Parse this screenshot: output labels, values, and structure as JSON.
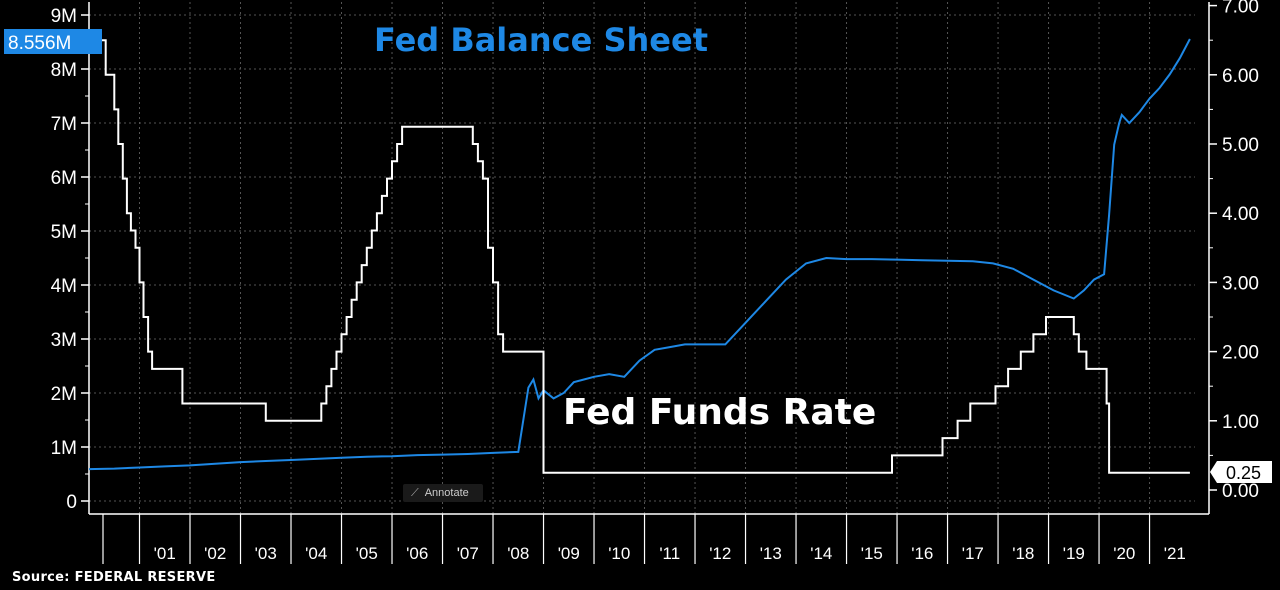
{
  "chart_data": {
    "type": "line",
    "title": "Fed Balance Sheet",
    "title_color": "#1e88e5",
    "source": "Source: FEDERAL RESERVE",
    "annotate_label": "Annotate",
    "x_range": [
      2000.0,
      2021.9
    ],
    "x_tick_labels": [
      "'01",
      "'02",
      "'03",
      "'04",
      "'05",
      "'06",
      "'07",
      "'08",
      "'09",
      "'10",
      "'11",
      "'12",
      "'13",
      "'14",
      "'15",
      "'16",
      "'17",
      "'18",
      "'19",
      "'20",
      "'21"
    ],
    "y_left": {
      "ticks": [
        0,
        1,
        2,
        3,
        4,
        5,
        6,
        7,
        8,
        9
      ],
      "tick_labels": [
        "0",
        "1M",
        "2M",
        "3M",
        "4M",
        "5M",
        "6M",
        "7M",
        "8M",
        "9M"
      ],
      "range": [
        0,
        9.3
      ],
      "last_value_label": "8.556M",
      "last_value_color": "#1e88e5"
    },
    "y_right": {
      "ticks": [
        0,
        1,
        2,
        3,
        4,
        5,
        6,
        7
      ],
      "tick_labels": [
        "0.00",
        "1.00",
        "2.00",
        "3.00",
        "4.00",
        "5.00",
        "6.00",
        "7.00"
      ],
      "range": [
        -0.15,
        7.0
      ],
      "last_value_label": "0.25"
    },
    "grid": true,
    "series": [
      {
        "name": "Fed Balance Sheet",
        "axis": "left",
        "color": "#1e88e5",
        "x": [
          2000.0,
          2000.5,
          2001.0,
          2001.5,
          2002.0,
          2002.5,
          2003.0,
          2003.5,
          2004.0,
          2004.5,
          2005.0,
          2005.5,
          2006.0,
          2006.5,
          2007.0,
          2007.5,
          2008.0,
          2008.5,
          2008.7,
          2008.8,
          2008.9,
          2009.0,
          2009.2,
          2009.4,
          2009.6,
          2009.8,
          2010.0,
          2010.3,
          2010.6,
          2010.9,
          2011.2,
          2011.5,
          2011.8,
          2012.2,
          2012.6,
          2013.0,
          2013.4,
          2013.8,
          2014.2,
          2014.6,
          2015.0,
          2015.5,
          2016.0,
          2016.5,
          2017.0,
          2017.5,
          2017.9,
          2018.3,
          2018.7,
          2019.1,
          2019.5,
          2019.7,
          2019.9,
          2020.1,
          2020.2,
          2020.3,
          2020.4,
          2020.45,
          2020.6,
          2020.8,
          2021.0,
          2021.2,
          2021.4,
          2021.6,
          2021.8
        ],
        "values": [
          0.59,
          0.6,
          0.62,
          0.64,
          0.66,
          0.69,
          0.72,
          0.74,
          0.76,
          0.78,
          0.8,
          0.82,
          0.83,
          0.85,
          0.86,
          0.87,
          0.89,
          0.91,
          2.1,
          2.25,
          1.9,
          2.05,
          1.9,
          2.0,
          2.2,
          2.25,
          2.3,
          2.35,
          2.3,
          2.6,
          2.8,
          2.85,
          2.9,
          2.9,
          2.9,
          3.3,
          3.7,
          4.1,
          4.4,
          4.5,
          4.48,
          4.48,
          4.47,
          4.46,
          4.45,
          4.44,
          4.4,
          4.3,
          4.1,
          3.9,
          3.75,
          3.9,
          4.1,
          4.2,
          5.3,
          6.6,
          7.0,
          7.15,
          7.0,
          7.2,
          7.45,
          7.65,
          7.9,
          8.2,
          8.556
        ]
      },
      {
        "name": "Fed Funds Rate",
        "axis": "right",
        "color": "#ffffff",
        "step": true,
        "x": [
          2000.0,
          2000.25,
          2000.33,
          2000.5,
          2000.58,
          2000.67,
          2000.75,
          2000.83,
          2000.92,
          2001.0,
          2001.08,
          2001.17,
          2001.25,
          2001.33,
          2001.45,
          2001.7,
          2001.85,
          2002.0,
          2002.9,
          2003.5,
          2004.0,
          2004.5,
          2004.6,
          2004.7,
          2004.8,
          2004.9,
          2005.0,
          2005.1,
          2005.2,
          2005.3,
          2005.4,
          2005.5,
          2005.6,
          2005.7,
          2005.8,
          2005.9,
          2006.0,
          2006.1,
          2006.2,
          2006.3,
          2006.4,
          2006.5,
          2007.6,
          2007.7,
          2007.8,
          2007.9,
          2008.0,
          2008.1,
          2008.2,
          2008.3,
          2008.5,
          2008.9,
          2009.0,
          2015.9,
          2016.9,
          2017.2,
          2017.45,
          2017.95,
          2018.2,
          2018.45,
          2018.7,
          2018.95,
          2019.5,
          2019.6,
          2019.75,
          2019.85,
          2020.15,
          2020.2,
          2021.8
        ],
        "values": [
          6.5,
          6.5,
          6.0,
          5.5,
          5.0,
          4.5,
          4.0,
          3.75,
          3.5,
          3.0,
          2.5,
          2.0,
          1.75,
          1.75,
          1.75,
          1.75,
          1.25,
          1.25,
          1.25,
          1.0,
          1.0,
          1.0,
          1.25,
          1.5,
          1.75,
          2.0,
          2.25,
          2.5,
          2.75,
          3.0,
          3.25,
          3.5,
          3.75,
          4.0,
          4.25,
          4.5,
          4.75,
          5.0,
          5.25,
          5.25,
          5.25,
          5.25,
          5.0,
          4.75,
          4.5,
          3.5,
          3.0,
          2.25,
          2.0,
          2.0,
          2.0,
          2.0,
          0.25,
          0.5,
          0.75,
          1.0,
          1.25,
          1.5,
          1.75,
          2.0,
          2.25,
          2.5,
          2.25,
          2.0,
          1.75,
          1.75,
          1.25,
          0.25,
          0.25
        ]
      }
    ],
    "annotations": [
      {
        "text": "Fed Balance Sheet",
        "color": "#1e88e5"
      },
      {
        "text": "Fed Funds Rate",
        "color": "#ffffff"
      }
    ]
  }
}
